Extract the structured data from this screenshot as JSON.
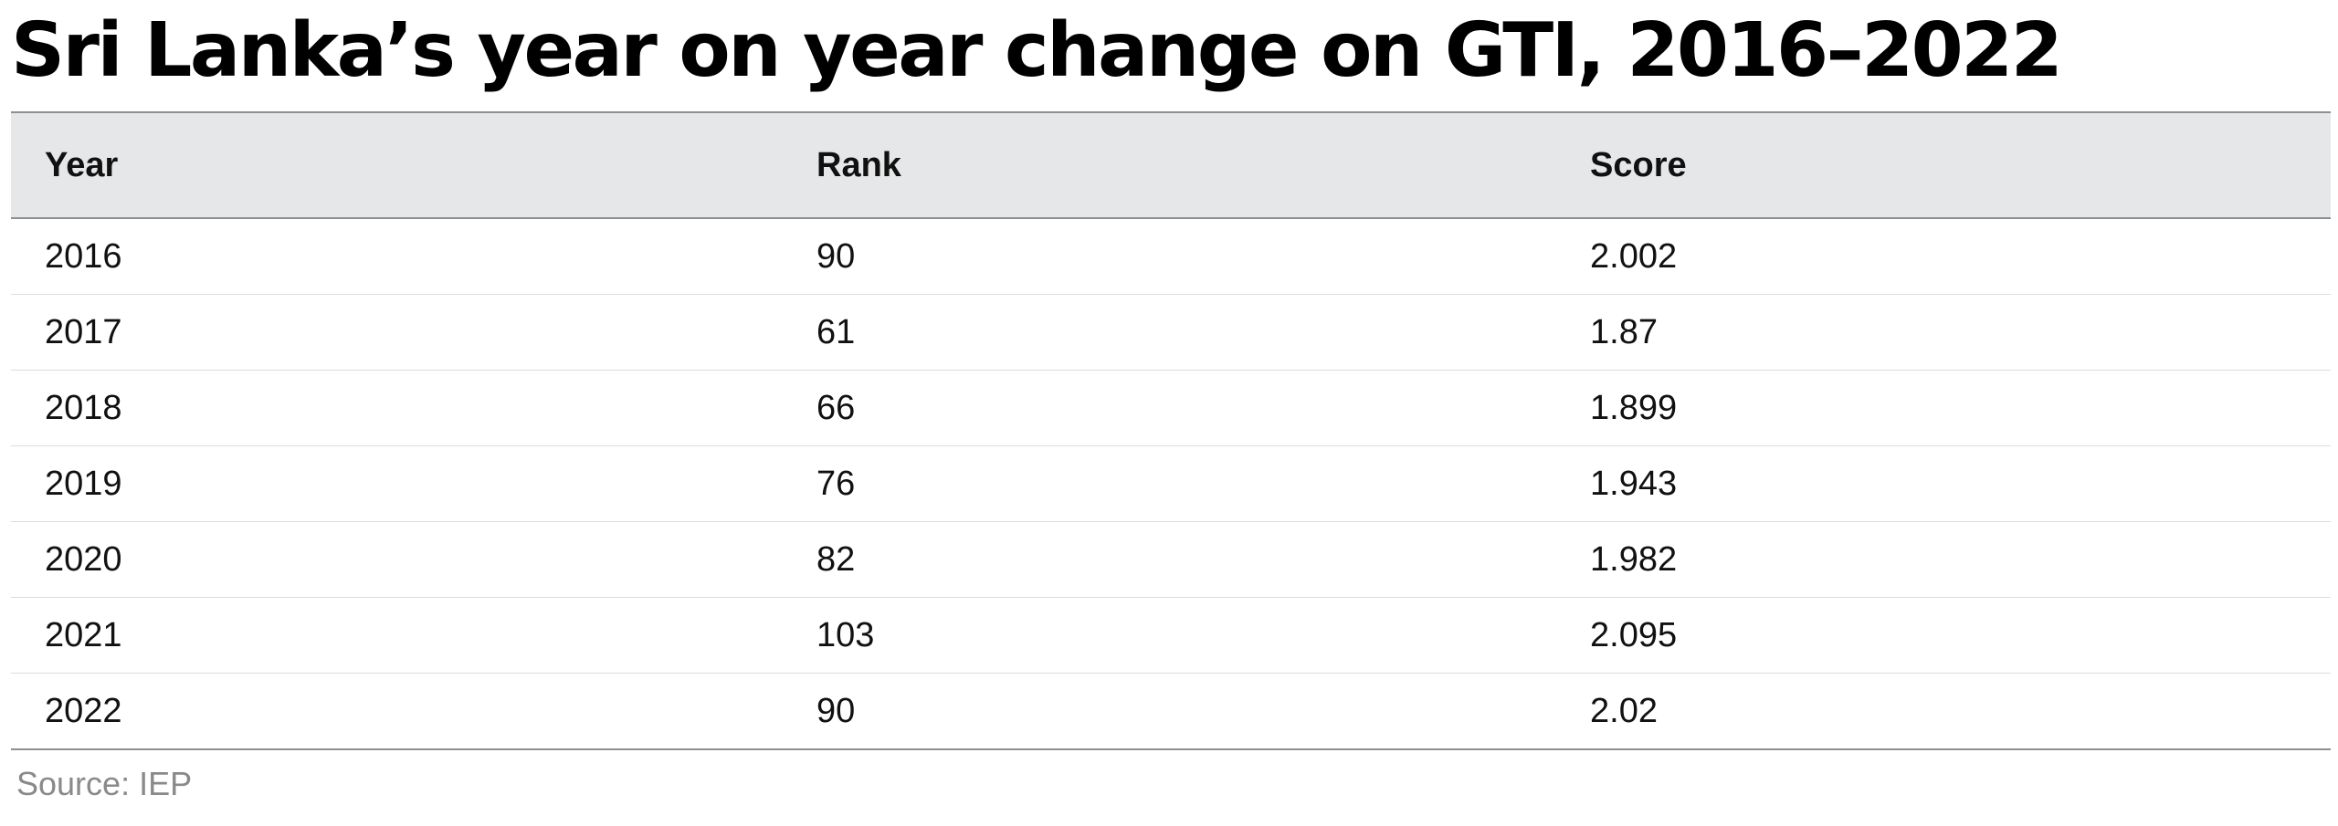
{
  "title": "Sri Lanka’s year on year change on GTI, 2016–2022",
  "columns": [
    "Year",
    "Rank",
    "Score"
  ],
  "rows": [
    [
      "2016",
      "90",
      "2.002"
    ],
    [
      "2017",
      "61",
      "1.87"
    ],
    [
      "2018",
      "66",
      "1.899"
    ],
    [
      "2019",
      "76",
      "1.943"
    ],
    [
      "2020",
      "82",
      "1.982"
    ],
    [
      "2021",
      "103",
      "2.095"
    ],
    [
      "2022",
      "90",
      "2.02"
    ]
  ],
  "source": "Source: IEP",
  "chart_data": {
    "type": "table",
    "title": "Sri Lanka’s year on year change on GTI, 2016–2022",
    "columns": [
      "Year",
      "Rank",
      "Score"
    ],
    "rows": [
      [
        2016,
        90,
        2.002
      ],
      [
        2017,
        61,
        1.87
      ],
      [
        2018,
        66,
        1.899
      ],
      [
        2019,
        76,
        1.943
      ],
      [
        2020,
        82,
        1.982
      ],
      [
        2021,
        103,
        2.095
      ],
      [
        2022,
        90,
        2.02
      ]
    ],
    "source": "Source: IEP"
  }
}
